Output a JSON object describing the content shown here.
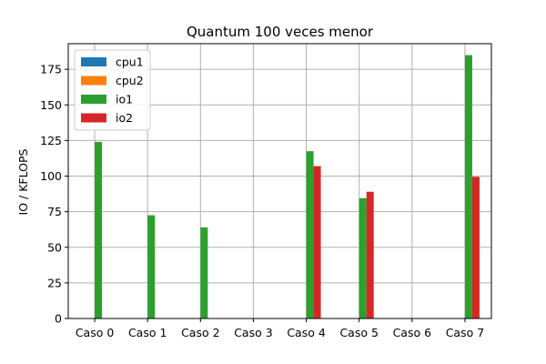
{
  "chart_data": {
    "type": "bar",
    "title": "Quantum 100 veces menor",
    "xlabel": "",
    "ylabel": "IO / KFLOPS",
    "categories": [
      "Caso 0",
      "Caso 1",
      "Caso 2",
      "Caso 3",
      "Caso 4",
      "Caso 5",
      "Caso 6",
      "Caso 7"
    ],
    "series": [
      {
        "name": "cpu1",
        "color": "#1f77b4",
        "values": [
          0,
          0,
          0,
          0,
          0,
          0,
          0,
          0
        ]
      },
      {
        "name": "cpu2",
        "color": "#ff7f0e",
        "values": [
          0,
          0,
          0,
          0,
          0,
          0,
          0,
          0
        ]
      },
      {
        "name": "io1",
        "color": "#2ca02c",
        "values": [
          124,
          72.5,
          64,
          0,
          117.5,
          84.5,
          0,
          185
        ]
      },
      {
        "name": "io2",
        "color": "#d62728",
        "values": [
          0,
          0,
          0,
          0,
          107,
          89,
          0,
          99.5
        ]
      }
    ],
    "ylim": [
      0,
      193
    ],
    "yticks": [
      0,
      25,
      50,
      75,
      100,
      125,
      150,
      175
    ],
    "grid": true,
    "legend_position": "top-left"
  }
}
